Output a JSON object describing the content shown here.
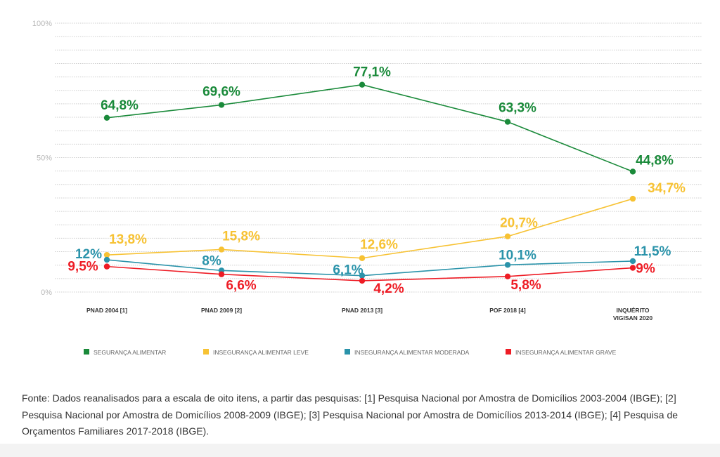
{
  "chart_data": {
    "type": "line",
    "categories": [
      "PNAD 2004 [1]",
      "PNAD 2009 [2]",
      "PNAD 2013 [3]",
      "POF 2018 [4]",
      "INQUÉRITO VIGISAN 2020"
    ],
    "y_ticks": [
      "100%",
      "50%",
      "0%"
    ],
    "ylim": [
      0,
      100
    ],
    "grid": true,
    "legend_position": "bottom",
    "series": [
      {
        "name": "SEGURANÇA ALIMENTAR",
        "color": "#1a8a3a",
        "values": [
          64.8,
          69.6,
          77.1,
          63.3,
          44.8
        ],
        "labels": [
          "64,8%",
          "69,6%",
          "77,1%",
          "63,3%",
          "44,8%"
        ]
      },
      {
        "name": "INSEGURANÇA ALIMENTAR LEVE",
        "color": "#f7c233",
        "values": [
          13.8,
          15.8,
          12.6,
          20.7,
          34.7
        ],
        "labels": [
          "13,8%",
          "15,8%",
          "12,6%",
          "20,7%",
          "34,7%"
        ]
      },
      {
        "name": "INSEGURANÇA ALIMENTAR MODERADA",
        "color": "#2a93aa",
        "values": [
          12,
          8,
          6.1,
          10.1,
          11.5
        ],
        "labels": [
          "12%",
          "8%",
          "6,1%",
          "10,1%",
          "11,5%"
        ]
      },
      {
        "name": "INSEGURANÇA ALIMENTAR GRAVE",
        "color": "#ee1c25",
        "values": [
          9.5,
          6.6,
          4.2,
          5.8,
          9
        ],
        "labels": [
          "9,5%",
          "6,6%",
          "4,2%",
          "5,8%",
          "9%"
        ]
      }
    ]
  },
  "source_text": "Fonte: Dados reanalisados para a escala de oito itens, a partir das pesquisas: [1] Pesquisa Nacional por Amostra de Domicílios 2003-2004 (IBGE); [2] Pesquisa Nacional por Amostra de Domicílios 2008-2009 (IBGE); [3] Pesquisa Nacional por Amostra de Domicílios 2013-2014 (IBGE); [4] Pesquisa de Orçamentos Familiares 2017-2018 (IBGE)."
}
